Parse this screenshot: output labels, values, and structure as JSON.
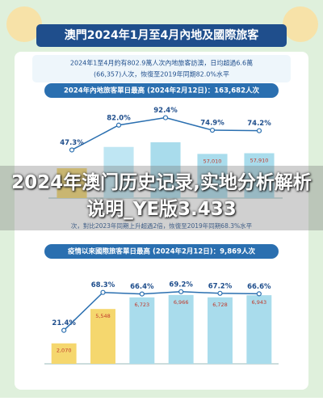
{
  "header": {
    "title": "澳門2024年1月至4月內地及國際旅客"
  },
  "summary": {
    "line1": "2024年1至4月約有802.9萬人次內地旅客訪澳，日均超過6.6萬",
    "line2": "(66,357)人次，恢復至2019年同期82.0%水平"
  },
  "middle": {
    "line": "次，對比2023年同期上升超過2倍，恢復至2019年同期68.3%水平"
  },
  "overlay": {
    "title": "2024年澳门历史记录,实地分析解析说明_YE版3.433"
  },
  "chart_data": [
    {
      "type": "bar",
      "title": "2024年內地旅客單日最高 (2024年2月12日)：163,682人次",
      "ylim": [
        0,
        120000
      ],
      "y2lim": [
        -20,
        110
      ],
      "series": [
        {
          "colors": [
            "#f5d76e",
            "#bfe6f3",
            "#a9dcec",
            "#a9dcec",
            "#a9dcec"
          ],
          "values": [
            38500,
            66000,
            72000,
            57010,
            57910
          ],
          "value_labels": [
            null,
            null,
            null,
            "57,010",
            "57,910"
          ]
        },
        {
          "axis": "y2",
          "color": "#2a6fb0",
          "values": [
            47.3,
            82.0,
            92.4,
            74.9,
            74.2
          ],
          "value_labels": [
            "47.3%",
            "82.0%",
            "92.4%",
            "74.9%",
            "74.2%"
          ]
        }
      ]
    },
    {
      "type": "bar",
      "title": "疫情以來國際旅客單日最高 (2024年2月12日)：9,869人次",
      "ylim": [
        0,
        9000
      ],
      "y2lim": [
        -20,
        90
      ],
      "series": [
        {
          "colors": [
            "#f5d76e",
            "#f5d76e",
            "#a9dcec",
            "#a9dcec",
            "#a9dcec",
            "#a9dcec"
          ],
          "values": [
            2070,
            5548,
            6723,
            6966,
            6728,
            6943
          ],
          "value_labels": [
            "2,070",
            "5,548",
            "6,723",
            "6,966",
            "6,728",
            "6,943"
          ]
        },
        {
          "axis": "y2",
          "color": "#2a6fb0",
          "values": [
            21.4,
            68.3,
            66.4,
            69.2,
            67.2,
            66.6
          ],
          "value_labels": [
            "21.4%",
            "68.3%",
            "66.4%",
            "69.2%",
            "67.2%",
            "66.6%"
          ]
        }
      ]
    }
  ]
}
